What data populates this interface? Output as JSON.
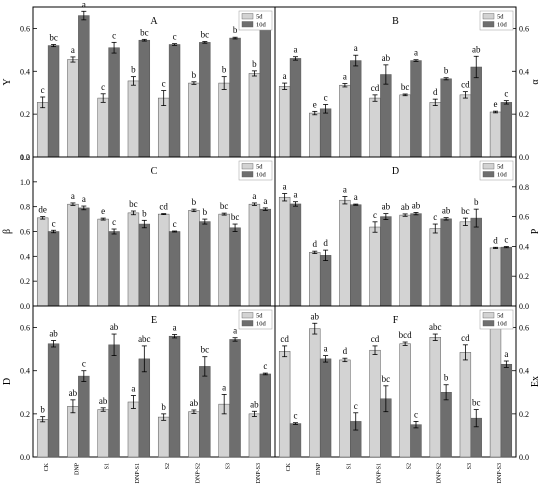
{
  "chart_data": [
    {
      "type": "bar",
      "panel": "A",
      "title": "A",
      "ylabel": "Y",
      "side": "left",
      "categories": [
        "CK",
        "DNP",
        "S1",
        "DNP-S1",
        "S2",
        "DNP-S2",
        "S3",
        "DNP-S3"
      ],
      "ylim": [
        0,
        0.7
      ],
      "yticks": [
        "0.0",
        "0.2",
        "0.4",
        "0.6"
      ],
      "legend": [
        "5d",
        "10d"
      ],
      "legend_position": "top-right",
      "series": [
        {
          "name": "5d",
          "color": "#d3d3d3",
          "values": [
            0.255,
            0.455,
            0.275,
            0.355,
            0.275,
            0.345,
            0.345,
            0.39
          ],
          "errors": [
            0.025,
            0.012,
            0.02,
            0.02,
            0.035,
            0.006,
            0.03,
            0.012
          ],
          "labels": [
            "c",
            "a",
            "c",
            "b",
            "c",
            "b",
            "b",
            "b"
          ]
        },
        {
          "name": "10d",
          "color": "#6e6e6e",
          "values": [
            0.52,
            0.66,
            0.51,
            0.545,
            0.525,
            0.535,
            0.555,
            0.62
          ],
          "errors": [
            0.005,
            0.02,
            0.025,
            0.004,
            0.004,
            0.004,
            0.004,
            0.005
          ],
          "labels": [
            "bc",
            "a",
            "c",
            "bc",
            "c",
            "bc",
            "b",
            "a"
          ]
        }
      ]
    },
    {
      "type": "bar",
      "panel": "B",
      "title": "B",
      "ylabel": "α",
      "side": "right",
      "categories": [
        "CK",
        "DNP",
        "S1",
        "DNP-S1",
        "S2",
        "DNP-S2",
        "S3",
        "DNP-S3"
      ],
      "ylim": [
        0,
        0.7
      ],
      "yticks": [
        "0.0",
        "0.2",
        "0.4",
        "0.6"
      ],
      "legend": [
        "5d",
        "10d"
      ],
      "legend_position": "top-right",
      "series": [
        {
          "name": "5d",
          "color": "#d3d3d3",
          "values": [
            0.33,
            0.205,
            0.335,
            0.275,
            0.29,
            0.255,
            0.29,
            0.21
          ],
          "errors": [
            0.015,
            0.008,
            0.008,
            0.015,
            0.004,
            0.015,
            0.015,
            0.004
          ],
          "labels": [
            "a",
            "e",
            "a",
            "cd",
            "bc",
            "d",
            "cd",
            "e"
          ]
        },
        {
          "name": "10d",
          "color": "#6e6e6e",
          "values": [
            0.46,
            0.225,
            0.45,
            0.385,
            0.45,
            0.365,
            0.42,
            0.255
          ],
          "errors": [
            0.008,
            0.02,
            0.025,
            0.045,
            0.004,
            0.005,
            0.05,
            0.008
          ],
          "labels": [
            "a",
            "c",
            "a",
            "ab",
            "a",
            "b",
            "ab",
            "c"
          ]
        }
      ]
    },
    {
      "type": "bar",
      "panel": "C",
      "title": "C",
      "ylabel": "β",
      "side": "left",
      "categories": [
        "CK",
        "DNP",
        "S1",
        "DNP-S1",
        "S2",
        "DNP-S2",
        "S3",
        "DNP-S3"
      ],
      "ylim": [
        0,
        1.2
      ],
      "yticks": [
        "0.0",
        "0.2",
        "0.4",
        "0.6",
        "0.8",
        "1.0",
        "1.2"
      ],
      "legend": [
        "5d",
        "10d"
      ],
      "legend_position": "top-right",
      "series": [
        {
          "name": "5d",
          "color": "#d3d3d3",
          "values": [
            0.71,
            0.82,
            0.7,
            0.75,
            0.74,
            0.77,
            0.74,
            0.82
          ],
          "errors": [
            0.01,
            0.01,
            0.008,
            0.015,
            0.004,
            0.01,
            0.008,
            0.01
          ],
          "labels": [
            "de",
            "a",
            "e",
            "bc",
            "cd",
            "b",
            "bc",
            "a"
          ]
        },
        {
          "name": "10d",
          "color": "#6e6e6e",
          "values": [
            0.6,
            0.79,
            0.6,
            0.66,
            0.6,
            0.68,
            0.63,
            0.78
          ],
          "errors": [
            0.01,
            0.015,
            0.02,
            0.03,
            0.004,
            0.02,
            0.03,
            0.01
          ],
          "labels": [
            "c",
            "a",
            "c",
            "b",
            "c",
            "b",
            "bc",
            "a"
          ]
        }
      ]
    },
    {
      "type": "bar",
      "panel": "D",
      "title": "D",
      "ylabel": "P",
      "side": "right",
      "categories": [
        "CK",
        "DNP",
        "S1",
        "DNP-S1",
        "S2",
        "DNP-S2",
        "S3",
        "DNP-S3"
      ],
      "ylim": [
        0,
        1.0
      ],
      "yticks": [
        "0.0",
        "0.2",
        "0.4",
        "0.6",
        "0.8"
      ],
      "legend": [
        "5d",
        "10d"
      ],
      "legend_position": "top-right",
      "series": [
        {
          "name": "5d",
          "color": "#d3d3d3",
          "values": [
            0.73,
            0.36,
            0.71,
            0.53,
            0.61,
            0.52,
            0.565,
            0.39
          ],
          "errors": [
            0.025,
            0.008,
            0.025,
            0.035,
            0.008,
            0.03,
            0.025,
            0.004
          ],
          "labels": [
            "a",
            "d",
            "a",
            "c",
            "ab",
            "c",
            "bc",
            "d"
          ]
        },
        {
          "name": "10d",
          "color": "#6e6e6e",
          "values": [
            0.685,
            0.34,
            0.68,
            0.6,
            0.62,
            0.585,
            0.59,
            0.395
          ],
          "errors": [
            0.015,
            0.035,
            0.004,
            0.02,
            0.008,
            0.008,
            0.06,
            0.004
          ],
          "labels": [
            "a",
            "d",
            "a",
            "ab",
            "ab",
            "ab",
            "b",
            "c"
          ]
        }
      ]
    },
    {
      "type": "bar",
      "panel": "E",
      "title": "E",
      "ylabel": "D",
      "side": "left",
      "categories": [
        "CK",
        "DNP",
        "S1",
        "DNP-S1",
        "S2",
        "DNP-S2",
        "S3",
        "DNP-S3"
      ],
      "ylim": [
        0,
        0.7
      ],
      "yticks": [
        "0.0",
        "0.2",
        "0.4",
        "0.6"
      ],
      "legend": [
        "5d",
        "10d"
      ],
      "legend_position": "top-right",
      "series": [
        {
          "name": "5d",
          "color": "#d3d3d3",
          "values": [
            0.175,
            0.235,
            0.22,
            0.255,
            0.185,
            0.21,
            0.245,
            0.2
          ],
          "errors": [
            0.012,
            0.03,
            0.008,
            0.03,
            0.015,
            0.008,
            0.045,
            0.012
          ],
          "labels": [
            "b",
            "ab",
            "ab",
            "a",
            "b",
            "ab",
            "a",
            "ab"
          ]
        },
        {
          "name": "10d",
          "color": "#6e6e6e",
          "values": [
            0.525,
            0.375,
            0.52,
            0.455,
            0.56,
            0.42,
            0.545,
            0.385
          ],
          "errors": [
            0.015,
            0.025,
            0.05,
            0.06,
            0.008,
            0.045,
            0.008,
            0.004
          ],
          "labels": [
            "ab",
            "c",
            "ab",
            "abc",
            "a",
            "bc",
            "a",
            "c"
          ]
        }
      ]
    },
    {
      "type": "bar",
      "panel": "F",
      "title": "F",
      "ylabel": "Ex",
      "side": "right",
      "categories": [
        "CK",
        "DNP",
        "S1",
        "DNP-S1",
        "S2",
        "DNP-S2",
        "S3",
        "DNP-S3"
      ],
      "ylim": [
        0,
        0.7
      ],
      "yticks": [
        "0.0",
        "0.2",
        "0.4",
        "0.6"
      ],
      "legend": [
        "5d",
        "10d"
      ],
      "legend_position": "top-right",
      "series": [
        {
          "name": "5d",
          "color": "#d3d3d3",
          "values": [
            0.49,
            0.595,
            0.45,
            0.495,
            0.525,
            0.555,
            0.485,
            0.615
          ],
          "errors": [
            0.025,
            0.025,
            0.008,
            0.02,
            0.008,
            0.015,
            0.035,
            0.008
          ],
          "labels": [
            "cd",
            "ab",
            "d",
            "cd",
            "bcd",
            "abc",
            "cd",
            "a"
          ]
        },
        {
          "name": "10d",
          "color": "#6e6e6e",
          "values": [
            0.155,
            0.455,
            0.165,
            0.27,
            0.15,
            0.3,
            0.18,
            0.43
          ],
          "errors": [
            0.004,
            0.015,
            0.04,
            0.06,
            0.015,
            0.035,
            0.04,
            0.015
          ],
          "labels": [
            "c",
            "a",
            "c",
            "bc",
            "c",
            "b",
            "bc",
            "a"
          ]
        }
      ]
    }
  ]
}
